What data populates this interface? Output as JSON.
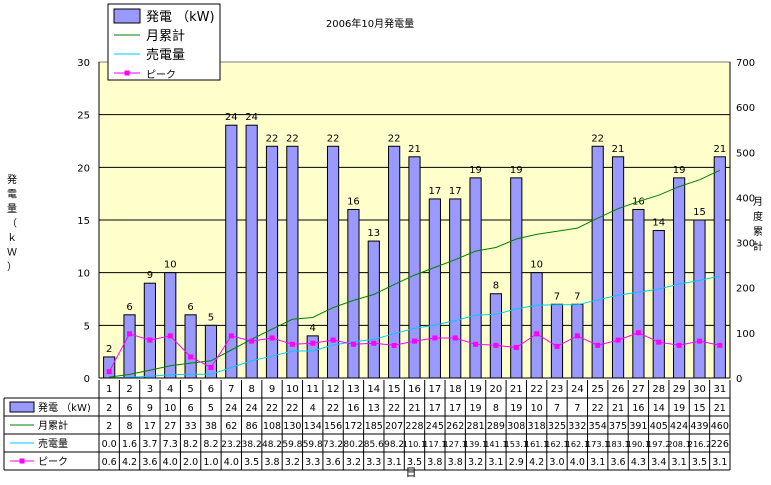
{
  "chart_data": {
    "type": "bar",
    "title": "2006年10月発電量",
    "xlabel": "日",
    "ylabel": "発電量（ｋＷ）",
    "y2label": "月度累計",
    "ylim": [
      0,
      30
    ],
    "yticks": [
      0,
      5,
      10,
      15,
      20,
      25,
      30
    ],
    "y2lim": [
      0,
      700
    ],
    "y2ticks": [
      0,
      100,
      200,
      300,
      400,
      500,
      600,
      700
    ],
    "categories": [
      "1",
      "2",
      "3",
      "4",
      "5",
      "6",
      "7",
      "8",
      "9",
      "10",
      "11",
      "12",
      "13",
      "14",
      "15",
      "16",
      "17",
      "18",
      "19",
      "20",
      "21",
      "22",
      "23",
      "24",
      "25",
      "26",
      "27",
      "28",
      "29",
      "30",
      "31"
    ],
    "series": [
      {
        "name": "発電 （kW)",
        "kind": "bar",
        "axis": "left",
        "color": "#9999ff",
        "values": [
          2,
          6,
          9,
          10,
          6,
          5,
          24,
          24,
          22,
          22,
          4,
          22,
          16,
          13,
          22,
          21,
          17,
          17,
          19,
          8,
          19,
          10,
          7,
          7,
          22,
          21,
          16,
          14,
          19,
          15,
          21
        ],
        "labels": [
          "2",
          "6",
          "9",
          "10",
          "6",
          "5",
          "24",
          "24",
          "22",
          "22",
          "4",
          "22",
          "16",
          "13",
          "22",
          "21",
          "17",
          "17",
          "19",
          "8",
          "19",
          "10",
          "7",
          "7",
          "22",
          "21",
          "16",
          "14",
          "19",
          "15",
          "21"
        ]
      },
      {
        "name": "月累計",
        "kind": "line",
        "axis": "right",
        "color": "#008000",
        "values": [
          2,
          8,
          17,
          27,
          33,
          38,
          62,
          86,
          108,
          130,
          134,
          156,
          172,
          185,
          207,
          228,
          245,
          262,
          281,
          289,
          308,
          318,
          325,
          332,
          354,
          375,
          391,
          405,
          424,
          439,
          460
        ],
        "labels": [
          "2",
          "8",
          "17",
          "27",
          "33",
          "38",
          "62",
          "86",
          "108",
          "130",
          "134",
          "156",
          "172",
          "185",
          "207",
          "228",
          "245",
          "262",
          "281",
          "289",
          "308",
          "318",
          "325",
          "332",
          "354",
          "375",
          "391",
          "405",
          "424",
          "439",
          "460"
        ]
      },
      {
        "name": "売電量",
        "kind": "line",
        "axis": "right",
        "color": "#00ccff",
        "values": [
          0.0,
          1.6,
          3.7,
          7.3,
          8.2,
          8.2,
          23.2,
          38.2,
          48.2,
          59.8,
          59.8,
          73.2,
          80.2,
          85.6,
          98.2,
          110.1,
          117.1,
          127.1,
          139.1,
          141.1,
          153.1,
          161.1,
          162.1,
          162.1,
          173.1,
          183.1,
          190.1,
          197.2,
          208.1,
          216.2,
          226
        ],
        "labels": [
          "0.0",
          "1.6",
          "3.7",
          "7.3",
          "8.2",
          "8.2",
          "23.2",
          "38.2",
          "48.2",
          "59.8",
          "59.8",
          "73.2",
          "80.2",
          "85.6",
          "98.2",
          "110.1",
          "117.1",
          "127.1",
          "139.1",
          "141.1",
          "153.1",
          "161.1",
          "162.1",
          "162.1",
          "173.1",
          "183.1",
          "190.1",
          "197.2",
          "208.1",
          "216.2",
          "226"
        ]
      },
      {
        "name": "ピーク",
        "kind": "line",
        "axis": "left",
        "color": "#ff00ff",
        "values": [
          0.6,
          4.2,
          3.6,
          4.0,
          2.0,
          1.0,
          4.0,
          3.5,
          3.8,
          3.2,
          3.3,
          3.6,
          3.2,
          3.3,
          3.1,
          3.5,
          3.8,
          3.8,
          3.2,
          3.1,
          2.9,
          4.2,
          3.0,
          4.0,
          3.1,
          3.6,
          4.3,
          3.4,
          3.1,
          3.5,
          3.1
        ],
        "labels": [
          "0.6",
          "4.2",
          "3.6",
          "4.0",
          "2.0",
          "1.0",
          "4.0",
          "3.5",
          "3.8",
          "3.2",
          "3.3",
          "3.6",
          "3.2",
          "3.3",
          "3.1",
          "3.5",
          "3.8",
          "3.8",
          "3.2",
          "3.1",
          "2.9",
          "4.2",
          "3.0",
          "4.0",
          "3.1",
          "3.6",
          "4.3",
          "3.4",
          "3.1",
          "3.5",
          "3.1"
        ]
      }
    ],
    "plot_background": "#ffffcc",
    "grid": true,
    "legend": "top-left"
  }
}
